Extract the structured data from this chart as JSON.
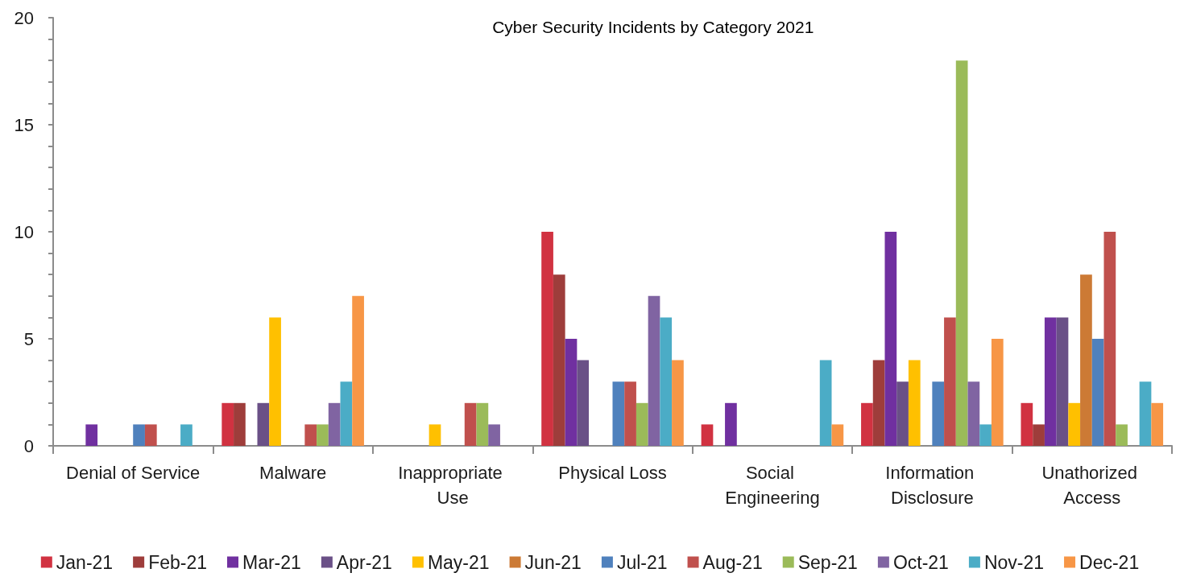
{
  "chart_data": {
    "type": "bar",
    "title": "Cyber Security Incidents by Category 2021",
    "categories": [
      "Denial of Service",
      "Malware",
      "Inappropriate Use",
      "Physical Loss",
      "Social Engineering",
      "Information Disclosure",
      "Unathorized Access"
    ],
    "series": [
      {
        "name": "Jan-21",
        "color": "#d13241",
        "values": [
          null,
          2,
          null,
          10,
          1,
          2,
          2
        ]
      },
      {
        "name": "Feb-21",
        "color": "#9e3d3b",
        "values": [
          null,
          2,
          null,
          8,
          null,
          4,
          1
        ]
      },
      {
        "name": "Mar-21",
        "color": "#7030a0",
        "values": [
          1,
          null,
          null,
          5,
          2,
          10,
          6
        ]
      },
      {
        "name": "Apr-21",
        "color": "#6a5087",
        "values": [
          null,
          2,
          null,
          4,
          null,
          3,
          6
        ]
      },
      {
        "name": "May-21",
        "color": "#ffc000",
        "values": [
          null,
          6,
          1,
          null,
          null,
          4,
          2
        ]
      },
      {
        "name": "Jun-21",
        "color": "#cc7a35",
        "values": [
          null,
          null,
          null,
          null,
          null,
          null,
          8
        ]
      },
      {
        "name": "Jul-21",
        "color": "#4f81bd",
        "values": [
          1,
          null,
          null,
          3,
          null,
          3,
          5
        ]
      },
      {
        "name": "Aug-21",
        "color": "#c0504d",
        "values": [
          1,
          1,
          2,
          3,
          null,
          6,
          10
        ]
      },
      {
        "name": "Sep-21",
        "color": "#9bbb59",
        "values": [
          null,
          1,
          2,
          2,
          null,
          18,
          1
        ]
      },
      {
        "name": "Oct-21",
        "color": "#8064a2",
        "values": [
          null,
          2,
          1,
          7,
          null,
          3,
          null
        ]
      },
      {
        "name": "Nov-21",
        "color": "#4bacc6",
        "values": [
          1,
          3,
          null,
          6,
          4,
          1,
          3
        ]
      },
      {
        "name": "Dec-21",
        "color": "#f79646",
        "values": [
          null,
          7,
          null,
          4,
          1,
          5,
          2
        ]
      }
    ],
    "ylim": [
      0,
      20
    ],
    "yticks": [
      0,
      {
        "value": 1,
        "label": null
      },
      {
        "value": 2,
        "label": null
      },
      {
        "value": 3,
        "label": null
      },
      {
        "value": 4,
        "label": null
      },
      5,
      {
        "value": 6,
        "label": null
      },
      {
        "value": 7,
        "label": null
      },
      {
        "value": 8,
        "label": null
      },
      {
        "value": 9,
        "label": null
      },
      10,
      {
        "value": 11,
        "label": null
      },
      {
        "value": 12,
        "label": null
      },
      {
        "value": 13,
        "label": null
      },
      {
        "value": 14,
        "label": null
      },
      15,
      {
        "value": 16,
        "label": null
      },
      {
        "value": 17,
        "label": null
      },
      {
        "value": 18,
        "label": null
      },
      {
        "value": 19,
        "label": null
      },
      20
    ],
    "grid": false,
    "legend": "bottom"
  }
}
